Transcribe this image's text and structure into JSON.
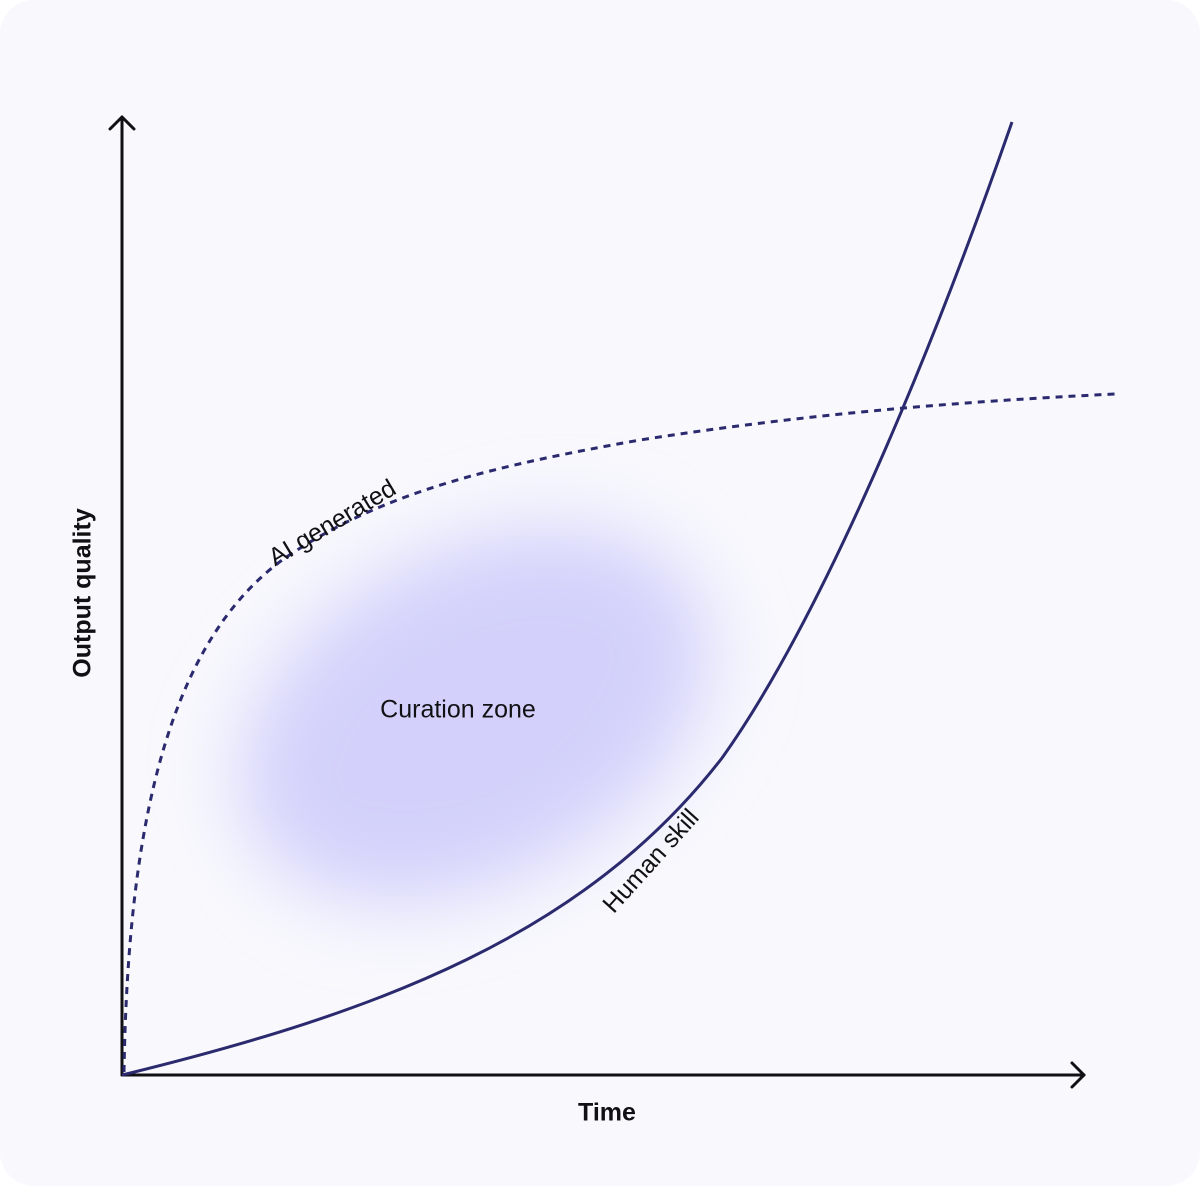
{
  "axes": {
    "y_label": "Output quality",
    "x_label": "Time"
  },
  "curves": [
    {
      "label": "AI generated"
    },
    {
      "label": "Human skill"
    }
  ],
  "zone": {
    "label": "Curation zone"
  }
}
